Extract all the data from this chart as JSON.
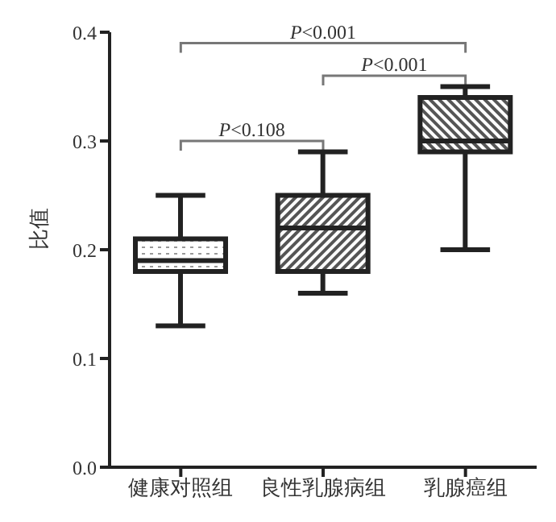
{
  "chart_data": {
    "type": "box",
    "ylabel": "比值",
    "categories": [
      "健康对照组",
      "良性乳腺病组",
      "乳腺癌组"
    ],
    "boxes": [
      {
        "low": 0.13,
        "q1": 0.18,
        "median": 0.19,
        "q3": 0.21,
        "high": 0.25
      },
      {
        "low": 0.16,
        "q1": 0.18,
        "median": 0.22,
        "q3": 0.25,
        "high": 0.29
      },
      {
        "low": 0.2,
        "q1": 0.29,
        "median": 0.3,
        "q3": 0.34,
        "high": 0.35
      }
    ],
    "ylim": [
      0,
      0.4
    ],
    "yticks": [
      {
        "value": 0,
        "label": "0.0"
      },
      0.1,
      0.2,
      0.3,
      0.4
    ],
    "annotations": [
      "P<0.108",
      "P<0.001",
      "P<0.001"
    ],
    "grid": false,
    "legend": false
  }
}
